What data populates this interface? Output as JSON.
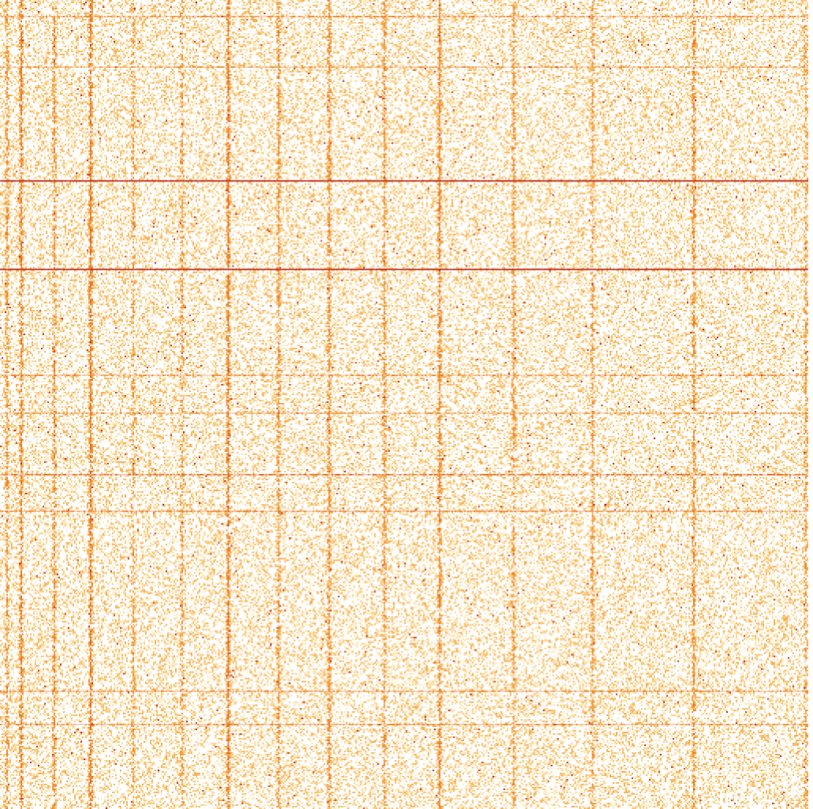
{
  "chart_data": {
    "type": "heatmap",
    "title": "",
    "xlabel": "",
    "ylabel": "",
    "grid": false,
    "legend": "none",
    "matrix_size": [
      512,
      512
    ],
    "colormap": [
      "#ffffff",
      "#fde3a7",
      "#f7b55c",
      "#ee7f1f",
      "#d8501a",
      "#b01010"
    ],
    "background_density": 0.36,
    "column_bands": [
      {
        "index": 4,
        "intensity": 0.55
      },
      {
        "index": 13,
        "intensity": 0.75
      },
      {
        "index": 34,
        "intensity": 0.6
      },
      {
        "index": 57,
        "intensity": 0.85
      },
      {
        "index": 84,
        "intensity": 0.45
      },
      {
        "index": 115,
        "intensity": 0.5
      },
      {
        "index": 144,
        "intensity": 0.85
      },
      {
        "index": 176,
        "intensity": 0.6
      },
      {
        "index": 208,
        "intensity": 0.65
      },
      {
        "index": 243,
        "intensity": 0.6
      },
      {
        "index": 278,
        "intensity": 0.75
      },
      {
        "index": 325,
        "intensity": 0.55
      },
      {
        "index": 375,
        "intensity": 0.5
      },
      {
        "index": 439,
        "intensity": 0.65
      },
      {
        "index": 510,
        "intensity": 0.5
      }
    ],
    "row_bands": [
      {
        "index": 10,
        "intensity": 0.5
      },
      {
        "index": 42,
        "intensity": 0.4
      },
      {
        "index": 114,
        "intensity": 0.95
      },
      {
        "index": 170,
        "intensity": 0.95
      },
      {
        "index": 237,
        "intensity": 0.45
      },
      {
        "index": 261,
        "intensity": 0.4
      },
      {
        "index": 300,
        "intensity": 0.75
      },
      {
        "index": 323,
        "intensity": 0.55
      },
      {
        "index": 437,
        "intensity": 0.5
      },
      {
        "index": 458,
        "intensity": 0.45
      }
    ]
  }
}
